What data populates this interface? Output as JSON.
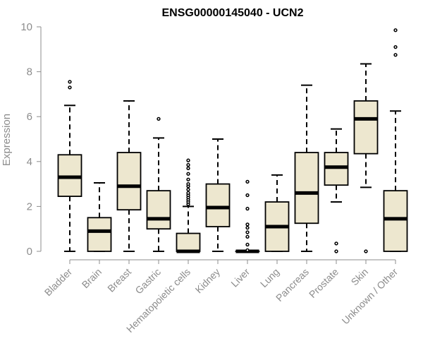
{
  "chart_data": {
    "type": "box",
    "title": "ENSG00000145040 - UCN2",
    "xlabel": "",
    "ylabel": "Expression",
    "ylim": [
      0,
      10
    ],
    "yticks": [
      0,
      2,
      4,
      6,
      8,
      10
    ],
    "grid": false,
    "colors": {
      "box_fill": "#ede7cf",
      "box_stroke": "#000000",
      "axis": "#8c8c8c"
    },
    "categories": [
      "Bladder",
      "Brain",
      "Breast",
      "Gastric",
      "Hematopoietic cells",
      "Kidney",
      "Liver",
      "Lung",
      "Pancreas",
      "Prostate",
      "Skin",
      "Unknown / Other"
    ],
    "boxes": [
      {
        "category": "Bladder",
        "min": 0.0,
        "q1": 2.45,
        "median": 3.3,
        "q3": 4.3,
        "max": 6.5,
        "outliers": [
          7.3,
          7.55
        ]
      },
      {
        "category": "Brain",
        "min": 0.0,
        "q1": 0.0,
        "median": 0.9,
        "q3": 1.5,
        "max": 3.05,
        "outliers": []
      },
      {
        "category": "Breast",
        "min": 0.0,
        "q1": 1.85,
        "median": 2.9,
        "q3": 4.4,
        "max": 6.7,
        "outliers": []
      },
      {
        "category": "Gastric",
        "min": 0.0,
        "q1": 1.0,
        "median": 1.45,
        "q3": 2.7,
        "max": 5.05,
        "outliers": [
          5.9
        ]
      },
      {
        "category": "Hematopoietic cells",
        "min": 0.0,
        "q1": 0.0,
        "median": 0.0,
        "q3": 0.8,
        "max": 2.0,
        "outliers": [
          2.1,
          2.2,
          2.3,
          2.4,
          2.5,
          2.6,
          2.75,
          2.9,
          3.0,
          3.2,
          3.45,
          3.7,
          3.85,
          4.05
        ]
      },
      {
        "category": "Kidney",
        "min": 0.0,
        "q1": 1.1,
        "median": 1.95,
        "q3": 3.0,
        "max": 5.0,
        "outliers": []
      },
      {
        "category": "Liver",
        "min": 0.0,
        "q1": 0.0,
        "median": 0.0,
        "q3": 0.0,
        "max": 0.0,
        "outliers": [
          0.05,
          0.3,
          0.65,
          0.85,
          1.05,
          1.2,
          1.9,
          2.5,
          3.1
        ]
      },
      {
        "category": "Lung",
        "min": 0.0,
        "q1": 0.0,
        "median": 1.1,
        "q3": 2.2,
        "max": 3.4,
        "outliers": []
      },
      {
        "category": "Pancreas",
        "min": 0.0,
        "q1": 1.25,
        "median": 2.6,
        "q3": 4.4,
        "max": 7.4,
        "outliers": []
      },
      {
        "category": "Prostate",
        "min": 2.2,
        "q1": 2.95,
        "median": 3.75,
        "q3": 4.4,
        "max": 5.45,
        "outliers": [
          0.0,
          0.35
        ]
      },
      {
        "category": "Skin",
        "min": 2.85,
        "q1": 4.35,
        "median": 5.9,
        "q3": 6.7,
        "max": 8.35,
        "outliers": [
          0.0
        ]
      },
      {
        "category": "Unknown / Other",
        "min": 0.0,
        "q1": 0.0,
        "median": 1.45,
        "q3": 2.7,
        "max": 6.25,
        "outliers": [
          8.75,
          9.1,
          9.85
        ]
      }
    ]
  }
}
